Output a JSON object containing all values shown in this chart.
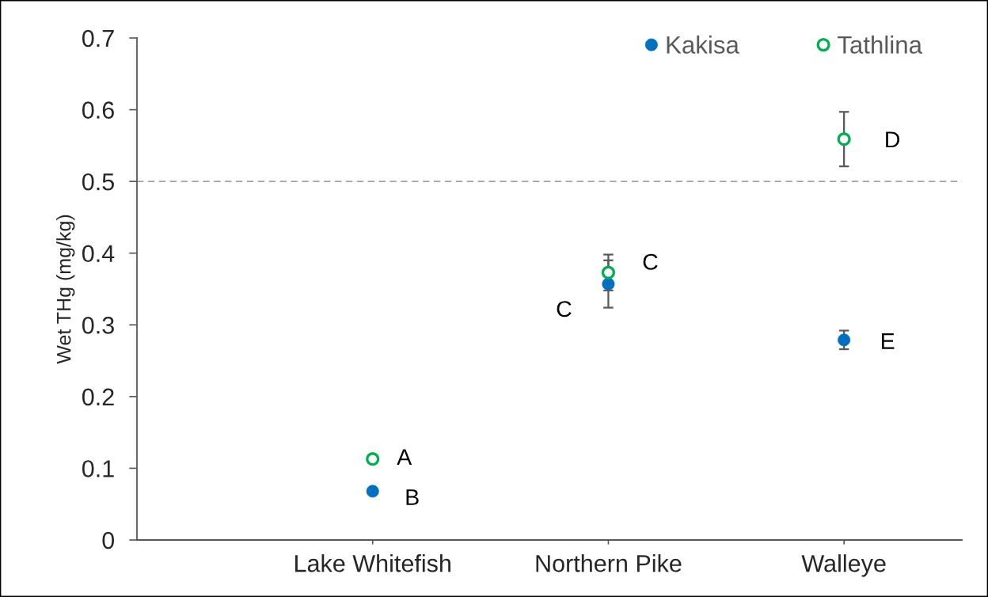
{
  "chart_data": {
    "type": "scatter",
    "ylabel": "Wet THg (mg/kg)",
    "categories": [
      "Lake Whitefish",
      "Northern Pike",
      "Walleye"
    ],
    "series": [
      {
        "name": "Kakisa",
        "color": "#0070c0",
        "values": [
          0.068,
          0.357,
          0.279
        ],
        "errors": [
          null,
          0.033,
          0.013
        ]
      },
      {
        "name": "Tathlina",
        "color": "#00b050",
        "values": [
          0.113,
          0.373,
          0.559
        ],
        "errors": [
          null,
          0.025,
          0.038
        ]
      }
    ],
    "ylim": [
      0,
      0.7
    ],
    "yticks": [
      0,
      0.1,
      0.2,
      0.3,
      0.4,
      0.5,
      0.6,
      0.7
    ],
    "ref_lines": [
      {
        "axis": "y",
        "value": 0.5,
        "color": "#808080",
        "line_style": "dashed"
      }
    ],
    "annotations": [
      {
        "text": "A",
        "x": "Lake Whitefish",
        "y": 0.113
      },
      {
        "text": "B",
        "x": "Lake Whitefish",
        "y": 0.068
      },
      {
        "text": "C",
        "x": "Northern Pike",
        "y": 0.357
      },
      {
        "text": "C",
        "x": "Northern Pike",
        "y": 0.373
      },
      {
        "text": "D",
        "x": "Walleye",
        "y": 0.559
      },
      {
        "text": "E",
        "x": "Walleye",
        "y": 0.279
      }
    ],
    "marker": "circle",
    "grid": false,
    "legend": "top right"
  }
}
